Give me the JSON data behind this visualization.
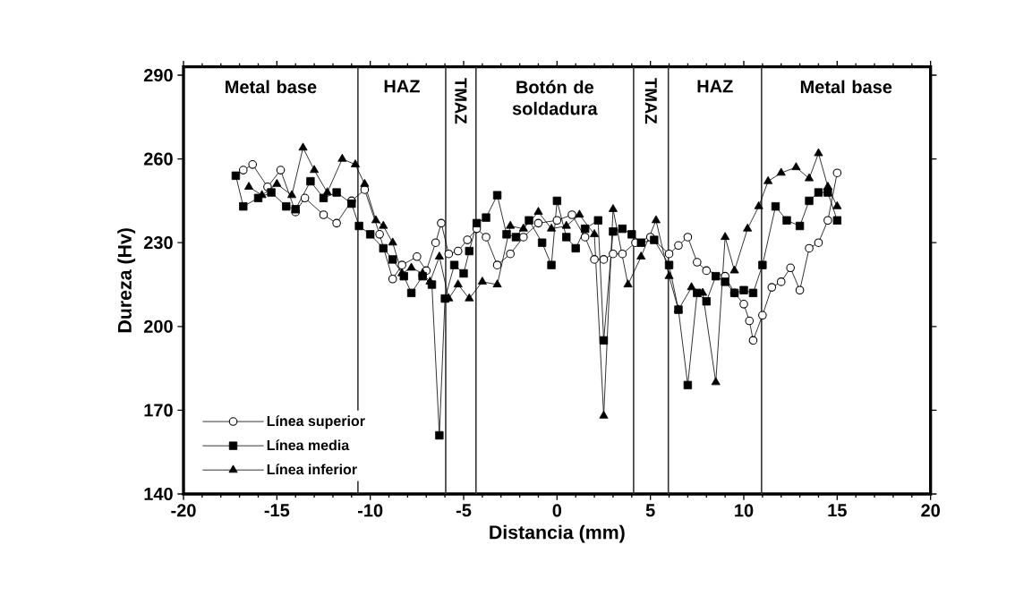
{
  "chart_data": {
    "type": "line",
    "xlabel": "Distancia (mm)",
    "ylabel": "Dureza (Hv)",
    "xlim": [
      -20,
      20
    ],
    "ylim": [
      140,
      293
    ],
    "xticks": [
      -20,
      -15,
      -10,
      -5,
      0,
      5,
      10,
      15,
      20
    ],
    "yticks": [
      140,
      170,
      200,
      230,
      260,
      290
    ],
    "legend": "bottom left",
    "line_style": "solid",
    "series": [
      {
        "name": "Línea superior",
        "color": "#000000",
        "marker": "circle",
        "x": [
          -16.8,
          -16.3,
          -15.5,
          -14.8,
          -14,
          -13.5,
          -12.5,
          -11.8,
          -11,
          -10.3,
          -9.5,
          -8.8,
          -8.3,
          -7.5,
          -7,
          -6.5,
          -6.2,
          -5.8,
          -5.3,
          -4.8,
          -4.3,
          -3.8,
          -3.2,
          -2.5,
          -1.8,
          -1,
          0,
          0.8,
          1.5,
          2,
          2.5,
          3,
          3.5,
          4.2,
          5,
          6,
          6.5,
          7,
          7.5,
          8,
          9,
          9.5,
          10,
          10.3,
          10.5,
          11,
          11.5,
          12,
          12.5,
          13,
          13.5,
          14,
          14.5,
          15
        ],
        "values": [
          256,
          258,
          250,
          256,
          241,
          246,
          240,
          237,
          245,
          249,
          233,
          217,
          222,
          225,
          220,
          230,
          237,
          226,
          227,
          231,
          235,
          232,
          222,
          226,
          232,
          237,
          238,
          240,
          232,
          224,
          224,
          226,
          226,
          230,
          232,
          226,
          229,
          232,
          223,
          220,
          218,
          212,
          208,
          202,
          195,
          204,
          214,
          216,
          221,
          213,
          228,
          230,
          238,
          255
        ]
      },
      {
        "name": "Línea media",
        "color": "#000000",
        "marker": "square",
        "x": [
          -17.2,
          -16.8,
          -16,
          -15.3,
          -14.5,
          -14,
          -13.2,
          -12.5,
          -11.8,
          -11,
          -10.6,
          -10,
          -9.3,
          -8.8,
          -8.2,
          -7.8,
          -7.2,
          -6.7,
          -6.3,
          -6,
          -5.5,
          -5,
          -4.7,
          -4.3,
          -3.8,
          -3.2,
          -2.7,
          -2.2,
          -1.5,
          -0.8,
          -0.3,
          0,
          0.5,
          1,
          1.5,
          2.2,
          2.5,
          3,
          3.5,
          4,
          4.5,
          5.2,
          6,
          6.5,
          7,
          7.5,
          8,
          8.5,
          9,
          9.5,
          10,
          10.5,
          11,
          11.7,
          12.3,
          13,
          13.5,
          14,
          14.5,
          15
        ],
        "values": [
          254,
          243,
          246,
          248,
          243,
          242,
          252,
          246,
          248,
          244,
          236,
          233,
          228,
          224,
          218,
          212,
          218,
          215,
          161,
          210,
          222,
          219,
          227,
          237,
          239,
          247,
          233,
          232,
          238,
          230,
          222,
          245,
          232,
          228,
          235,
          238,
          195,
          234,
          235,
          233,
          230,
          231,
          222,
          206,
          179,
          212,
          209,
          218,
          216,
          212,
          213,
          212,
          222,
          243,
          238,
          236,
          245,
          248,
          248,
          238
        ]
      },
      {
        "name": "Línea inferior",
        "color": "#000000",
        "marker": "triangle",
        "x": [
          -16.5,
          -15.8,
          -15,
          -14.2,
          -13.6,
          -13,
          -12.3,
          -11.5,
          -10.8,
          -10.3,
          -9.7,
          -9.3,
          -8.8,
          -8.3,
          -7.8,
          -7.2,
          -6.8,
          -6.3,
          -5.8,
          -5.3,
          -4.7,
          -4,
          -3.2,
          -2.5,
          -1.8,
          -1,
          -0.3,
          0.5,
          1.2,
          2,
          2.5,
          3,
          3.8,
          4.5,
          5.3,
          6,
          6.5,
          7.2,
          7.8,
          8.5,
          9,
          9.5,
          10.2,
          10.8,
          11.3,
          12,
          12.8,
          13.5,
          14,
          14.5,
          15
        ],
        "values": [
          250,
          247,
          251,
          247,
          264,
          256,
          248,
          260,
          258,
          251,
          238,
          236,
          230,
          219,
          221,
          219,
          216,
          225,
          210,
          215,
          210,
          216,
          215,
          236,
          235,
          241,
          235,
          236,
          240,
          233,
          168,
          242,
          215,
          225,
          238,
          218,
          206,
          214,
          212,
          180,
          232,
          220,
          235,
          243,
          252,
          255,
          257,
          253,
          262,
          250,
          243
        ]
      }
    ],
    "ref_lines": [
      {
        "axis": "x",
        "value": -10.66
      },
      {
        "axis": "x",
        "value": -5.96
      },
      {
        "axis": "x",
        "value": -4.34
      },
      {
        "axis": "x",
        "value": 4.1
      },
      {
        "axis": "x",
        "value": 5.96
      },
      {
        "axis": "x",
        "value": 10.95
      }
    ],
    "annotations": [
      "Metal base",
      "HAZ",
      "TMAZ",
      "Botón de soldadura",
      "TMAZ",
      "HAZ",
      "Metal base"
    ]
  }
}
